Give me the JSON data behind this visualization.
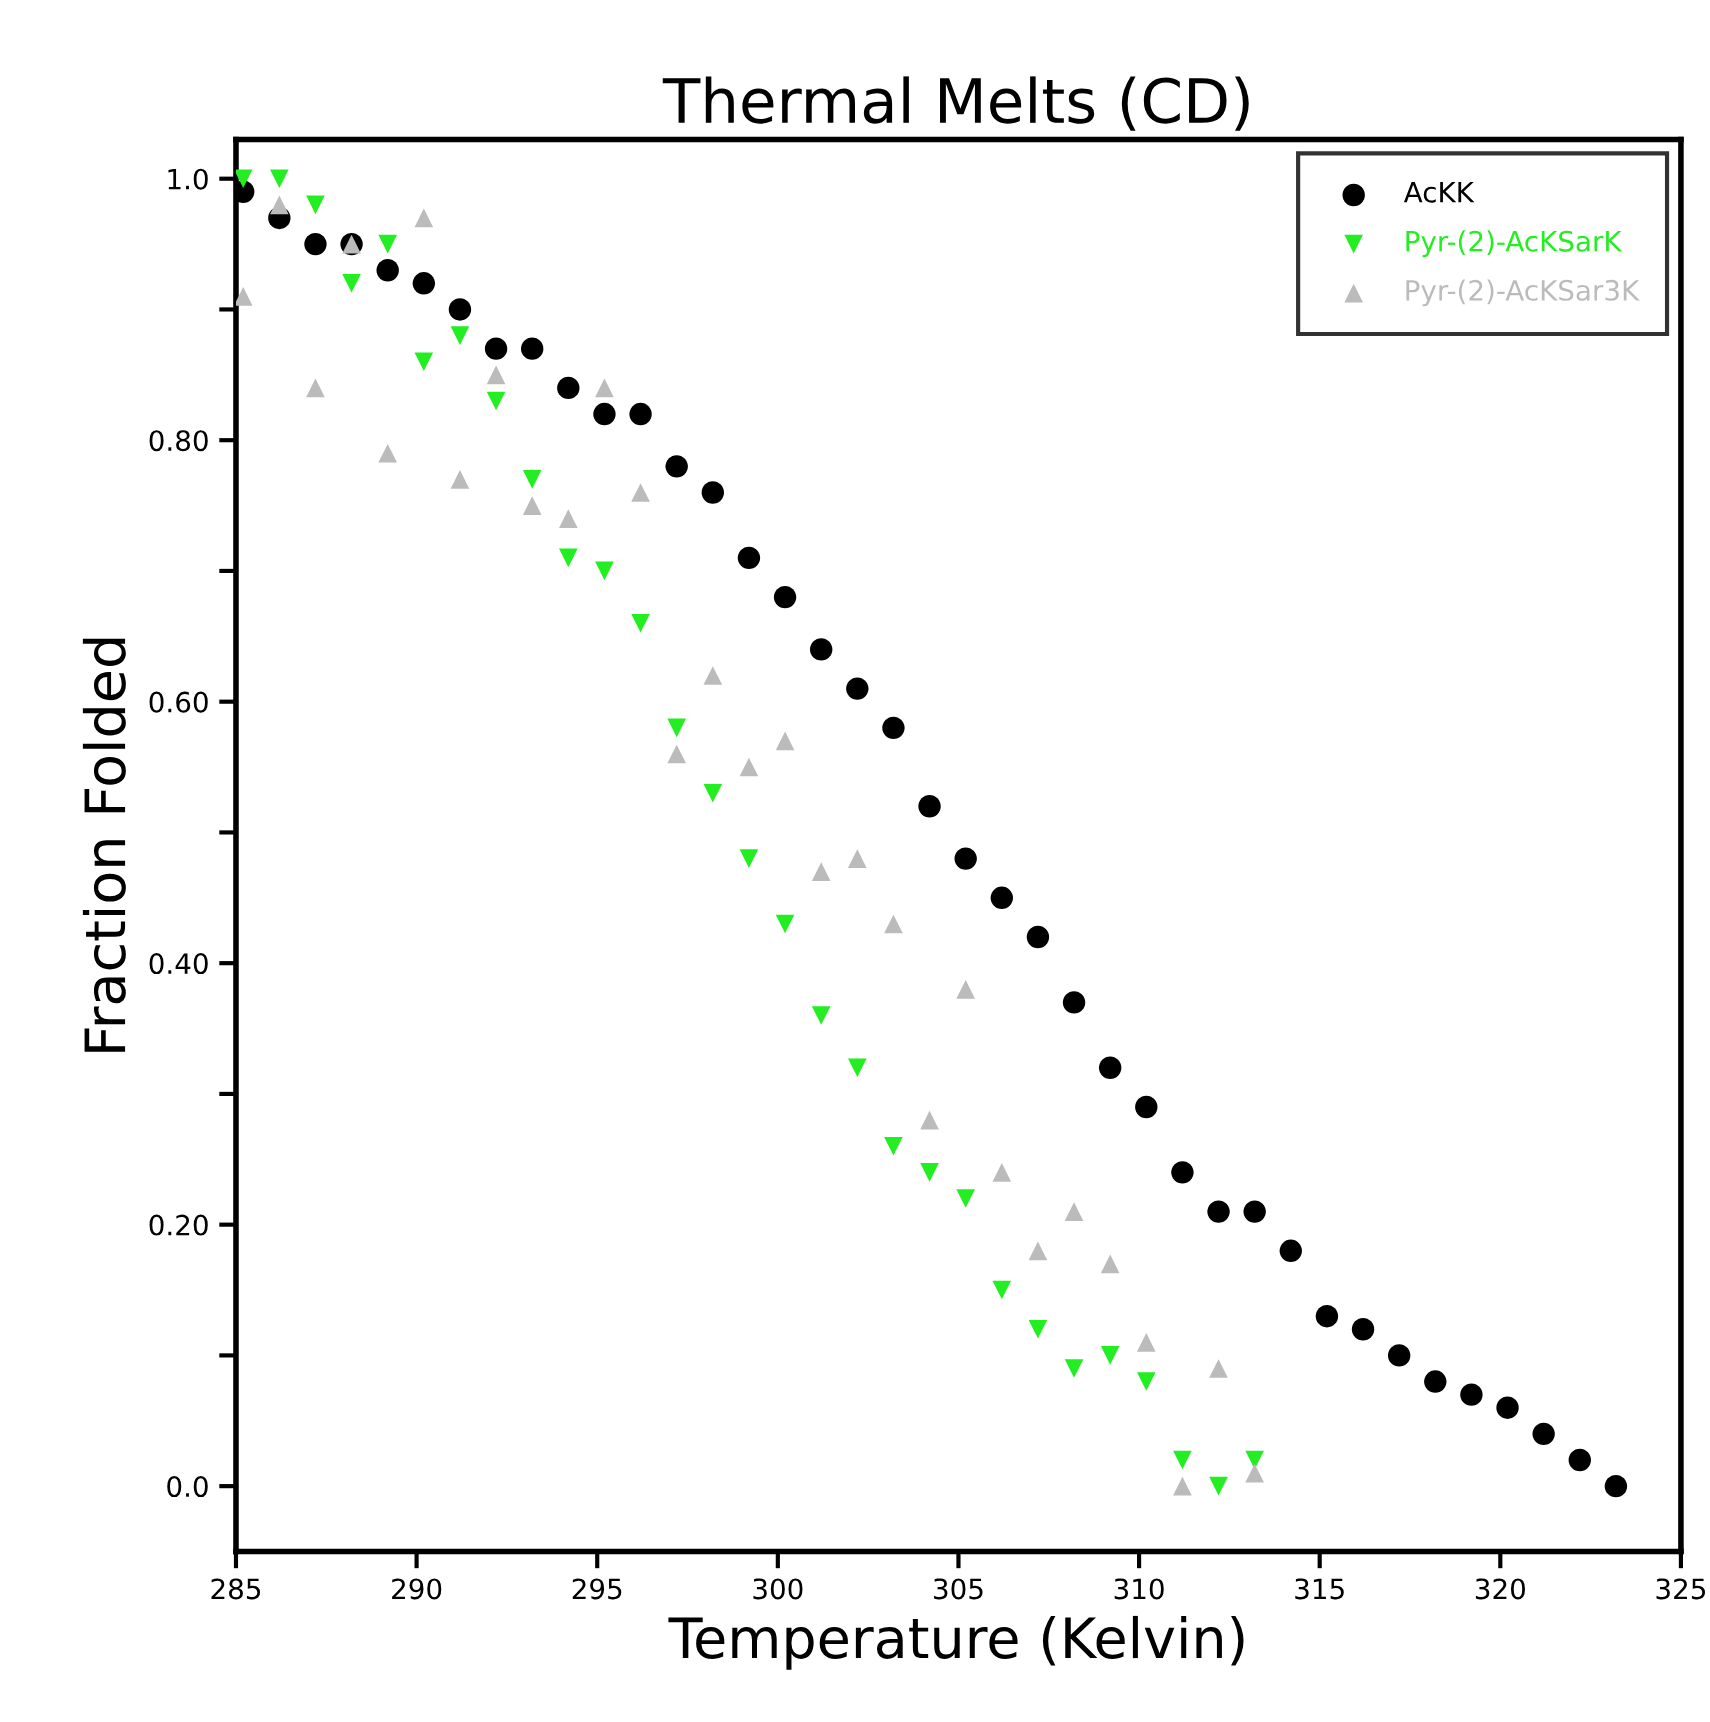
{
  "chart_data": {
    "type": "scatter",
    "title": "Thermal Melts (CD)",
    "xlabel": "Temperature (Kelvin)",
    "ylabel": "Fraction Folded",
    "xlim": [
      285,
      325
    ],
    "xticks": [
      285,
      290,
      295,
      300,
      305,
      310,
      315,
      320,
      325
    ],
    "ylim": [
      -0.05,
      1.03
    ],
    "yticks": [
      {
        "value": 0,
        "label": "0.0"
      },
      {
        "value": 0.1,
        "label": null
      },
      {
        "value": 0.2,
        "label": "0.20"
      },
      {
        "value": 0.3,
        "label": null
      },
      {
        "value": 0.4,
        "label": "0.40"
      },
      {
        "value": 0.5,
        "label": null
      },
      {
        "value": 0.6,
        "label": "0.60"
      },
      {
        "value": 0.7,
        "label": null
      },
      {
        "value": 0.8,
        "label": "0.80"
      },
      {
        "value": 0.9,
        "label": null
      },
      {
        "value": 1.0,
        "label": "1.0"
      }
    ],
    "grid": false,
    "legend": "top right",
    "series": [
      {
        "name": "AcKK",
        "color": "#000000",
        "marker": "circle",
        "x": [
          285.2,
          286.2,
          287.2,
          288.2,
          289.2,
          290.2,
          291.2,
          292.2,
          293.2,
          294.2,
          295.2,
          296.2,
          297.2,
          298.2,
          299.2,
          300.2,
          301.2,
          302.2,
          303.2,
          304.2,
          305.2,
          306.2,
          307.2,
          308.2,
          309.2,
          310.2,
          311.2,
          312.2,
          313.2,
          314.2,
          315.2,
          316.2,
          317.2,
          318.2,
          319.2,
          320.2,
          321.2,
          322.2,
          323.2
        ],
        "values": [
          0.99,
          0.97,
          0.95,
          0.95,
          0.93,
          0.92,
          0.9,
          0.87,
          0.87,
          0.84,
          0.82,
          0.82,
          0.78,
          0.76,
          0.71,
          0.68,
          0.64,
          0.61,
          0.58,
          0.52,
          0.48,
          0.45,
          0.42,
          0.37,
          0.32,
          0.29,
          0.24,
          0.21,
          0.21,
          0.18,
          0.13,
          0.12,
          0.1,
          0.08,
          0.07,
          0.06,
          0.04,
          0.02,
          0.0
        ]
      },
      {
        "name": "Pyr-(2)-AcKSarK",
        "color": "#22ee22",
        "marker": "triangle_down",
        "x": [
          285.2,
          286.2,
          287.2,
          288.2,
          289.2,
          290.2,
          291.2,
          292.2,
          293.2,
          294.2,
          295.2,
          296.2,
          297.2,
          298.2,
          299.2,
          300.2,
          301.2,
          302.2,
          303.2,
          304.2,
          305.2,
          306.2,
          307.2,
          308.2,
          309.2,
          310.2,
          311.2,
          312.2,
          313.2
        ],
        "values": [
          1.0,
          1.0,
          0.98,
          0.92,
          0.95,
          0.86,
          0.88,
          0.83,
          0.77,
          0.71,
          0.7,
          0.66,
          0.58,
          0.53,
          0.48,
          0.43,
          0.36,
          0.32,
          0.26,
          0.24,
          0.22,
          0.15,
          0.12,
          0.09,
          0.1,
          0.08,
          0.02,
          0.0,
          0.02
        ]
      },
      {
        "name": "Pyr-(2)-AcKSar3K",
        "color": "#bbbbbb",
        "marker": "triangle",
        "x": [
          285.2,
          286.2,
          287.2,
          288.2,
          289.2,
          290.2,
          291.2,
          292.2,
          293.2,
          294.2,
          295.2,
          296.2,
          297.2,
          298.2,
          299.2,
          300.2,
          301.2,
          302.2,
          303.2,
          304.2,
          305.2,
          306.2,
          307.2,
          308.2,
          309.2,
          310.2,
          311.2,
          312.2,
          313.2
        ],
        "values": [
          0.91,
          0.98,
          0.84,
          0.95,
          0.79,
          0.97,
          0.77,
          0.85,
          0.75,
          0.74,
          0.84,
          0.76,
          0.56,
          0.62,
          0.55,
          0.57,
          0.47,
          0.48,
          0.43,
          0.28,
          0.38,
          0.24,
          0.18,
          0.21,
          0.17,
          0.11,
          0.0,
          0.09,
          0.01
        ]
      }
    ]
  }
}
